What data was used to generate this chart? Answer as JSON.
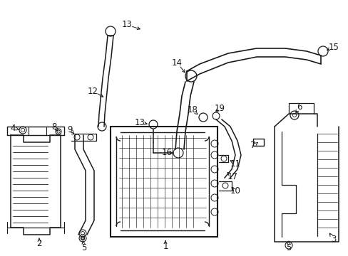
{
  "background_color": "#ffffff",
  "line_color": "#1a1a1a",
  "label_color": "#000000",
  "label_fontsize": 8.5,
  "figsize": [
    4.89,
    3.6
  ],
  "dpi": 100
}
